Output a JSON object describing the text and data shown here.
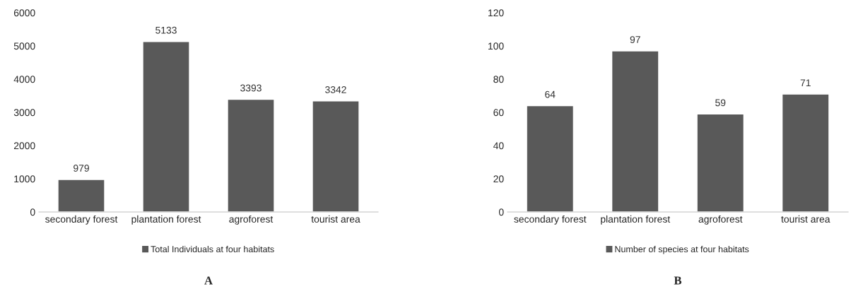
{
  "chart_data": [
    {
      "type": "bar",
      "categories": [
        "secondary forest",
        "plantation forest",
        "agroforest",
        "tourist area"
      ],
      "series": [
        {
          "name": "Total Individuals at four habitats",
          "color": "#595959",
          "values": [
            979,
            5133,
            3393,
            3342
          ]
        }
      ],
      "ylim": [
        0,
        6000
      ],
      "yticks": [
        0,
        1000,
        2000,
        3000,
        4000,
        5000,
        6000
      ],
      "data_labels": true,
      "legend": "bottom",
      "grid": false,
      "annotations": [
        "A"
      ]
    },
    {
      "type": "bar",
      "categories": [
        "secondary forest",
        "plantation forest",
        "agroforest",
        "tourist area"
      ],
      "series": [
        {
          "name": "Number of species at four habitats",
          "color": "#595959",
          "values": [
            64,
            97,
            59,
            71
          ]
        }
      ],
      "ylim": [
        0,
        120
      ],
      "yticks": [
        0,
        20,
        40,
        60,
        80,
        100,
        120
      ],
      "data_labels": true,
      "legend": "bottom",
      "grid": false,
      "annotations": [
        "B"
      ]
    }
  ]
}
